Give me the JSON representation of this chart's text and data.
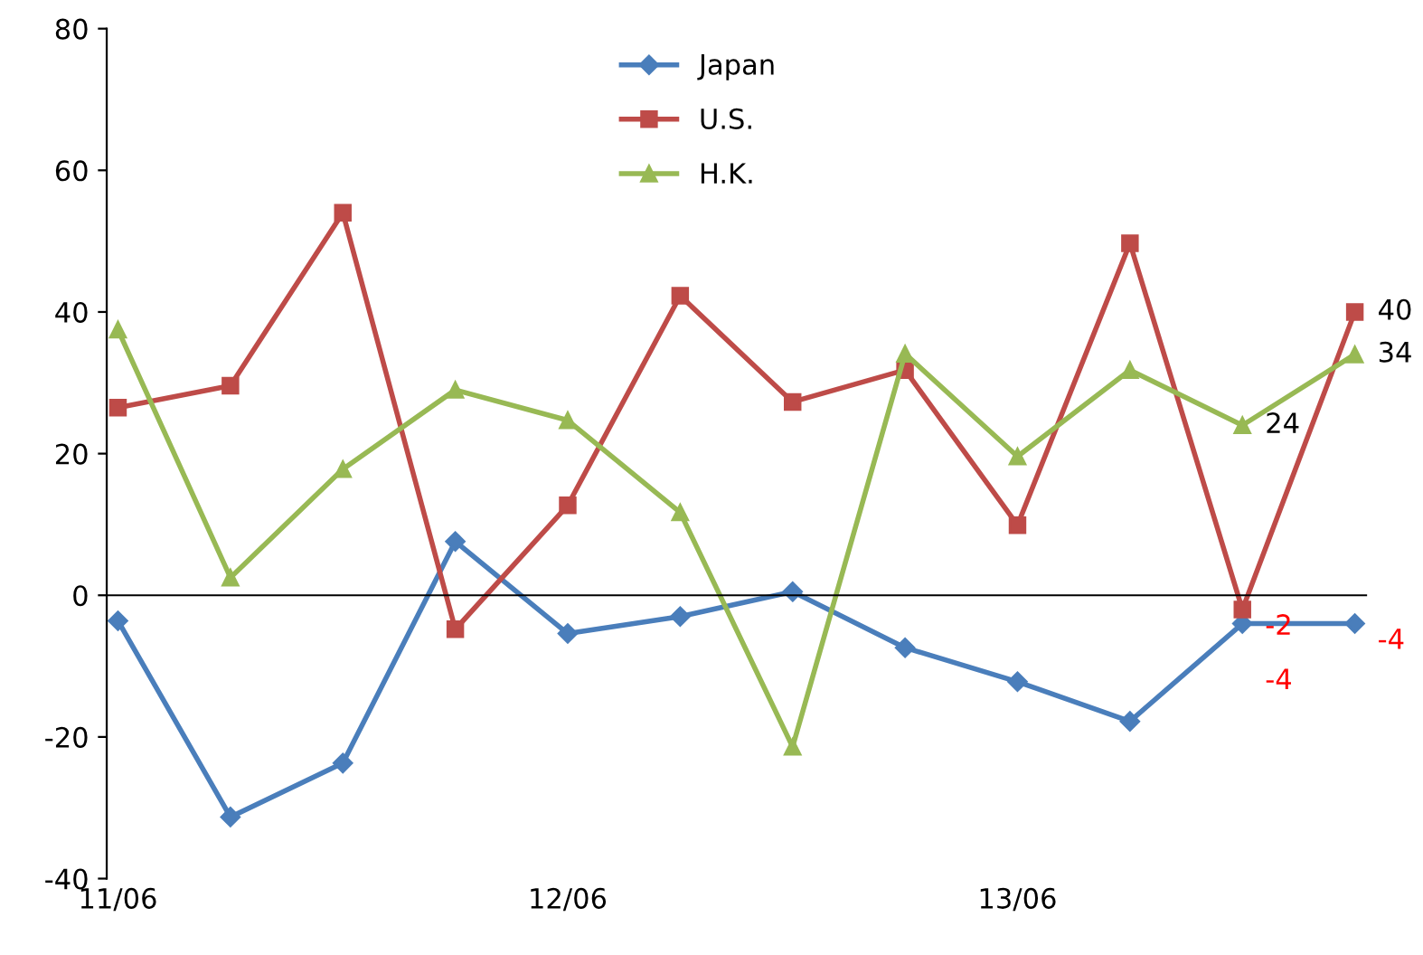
{
  "chart_data": {
    "type": "line",
    "categories": [
      "11/06",
      null,
      null,
      null,
      "12/06",
      null,
      null,
      null,
      "13/06",
      null,
      null,
      null
    ],
    "series": [
      {
        "name": "Japan",
        "color": "#4a7ebb",
        "marker": "diamond",
        "values": [
          -3.6,
          -31.3,
          -23.7,
          7.6,
          -5.4,
          -3,
          0.5,
          -7.4,
          -12.2,
          -17.8,
          -4,
          -4
        ],
        "value_labels": [
          null,
          null,
          null,
          null,
          null,
          null,
          null,
          null,
          null,
          null,
          "-4",
          "-4"
        ]
      },
      {
        "name": "U.S.",
        "color": "#be4b48",
        "marker": "square",
        "values": [
          26.5,
          29.6,
          54,
          -4.8,
          12.7,
          42.3,
          27.3,
          31.8,
          9.9,
          49.7,
          -2,
          40
        ],
        "value_labels": [
          null,
          null,
          null,
          null,
          null,
          null,
          null,
          null,
          null,
          null,
          "-2",
          "40"
        ]
      },
      {
        "name": "H.K.",
        "color": "#98b954",
        "marker": "triangle",
        "values": [
          37.5,
          2.5,
          17.8,
          29,
          24.7,
          11.7,
          -21.4,
          34.1,
          19.6,
          31.8,
          24,
          34
        ],
        "value_labels": [
          null,
          null,
          null,
          null,
          null,
          null,
          null,
          null,
          null,
          null,
          "24",
          "34"
        ]
      }
    ],
    "ylim": [
      -40,
      80
    ],
    "yticks": [
      -40,
      -20,
      0,
      20,
      40,
      60,
      80
    ],
    "legend": "top",
    "line_style": "solid"
  }
}
